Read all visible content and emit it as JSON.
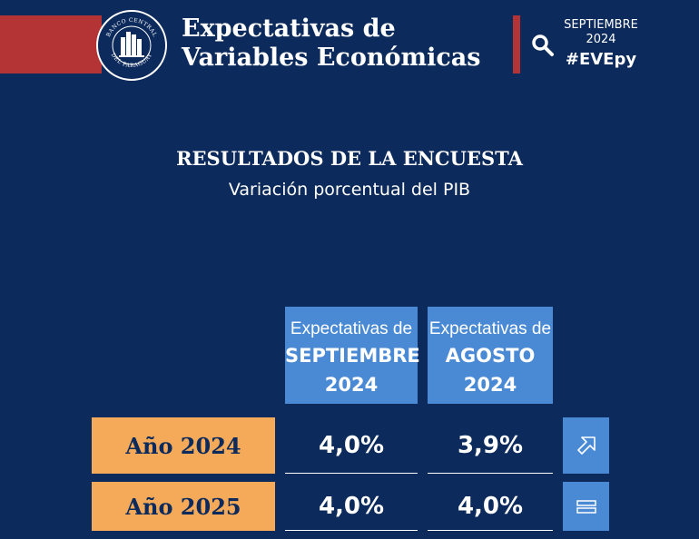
{
  "header": {
    "title_line1": "Expectativas de",
    "title_line2": "Variables Económicas",
    "month": "SEPTIEMBRE",
    "year": "2024",
    "hashtag": "#EVEpy",
    "seal_text_top": "BANCO CENTRAL",
    "seal_text_bottom": "DEL PARAGUAY"
  },
  "section": {
    "title": "RESULTADOS DE LA ENCUESTA",
    "subtitle": "Variación porcentual del PIB"
  },
  "columns": [
    {
      "line1": "Expectativas de",
      "line2": "SEPTIEMBRE",
      "line3": "2024"
    },
    {
      "line1": "Expectativas de",
      "line2": "AGOSTO",
      "line3": "2024"
    }
  ],
  "rows": [
    {
      "label": "Año 2024",
      "sep": "4,0%",
      "ago": "3,9%",
      "trend_icon": "arrow-up-right-icon"
    },
    {
      "label": "Año 2025",
      "sep": "4,0%",
      "ago": "4,0%",
      "trend_icon": "equals-icon"
    }
  ],
  "colors": {
    "background": "#0c2a5b",
    "accent_red": "#b43435",
    "header_blue": "#4a8ad5",
    "label_orange": "#f4aa59"
  }
}
